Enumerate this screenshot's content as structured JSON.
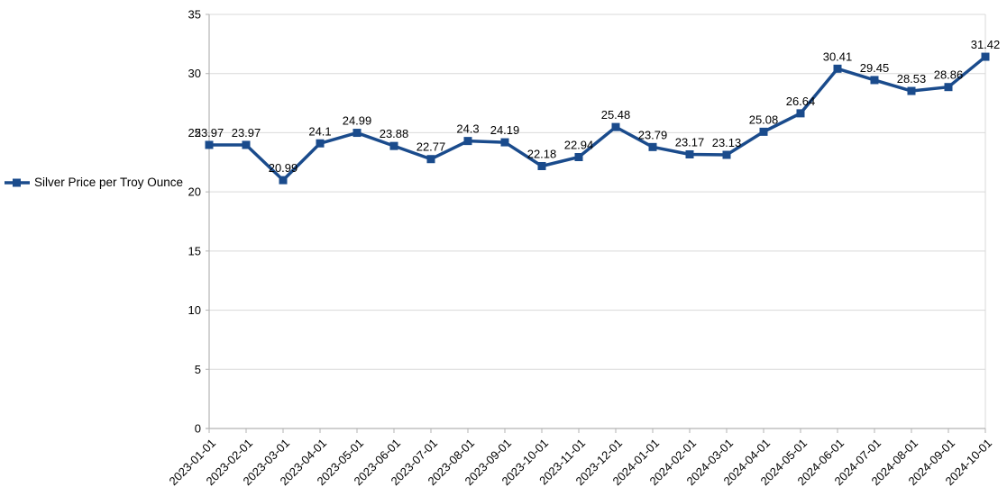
{
  "chart_data": {
    "type": "line",
    "title": "",
    "xlabel": "",
    "ylabel": "",
    "categories": [
      "2023-01-01",
      "2023-02-01",
      "2023-03-01",
      "2023-04-01",
      "2023-05-01",
      "2023-06-01",
      "2023-07-01",
      "2023-08-01",
      "2023-09-01",
      "2023-10-01",
      "2023-11-01",
      "2023-12-01",
      "2024-01-01",
      "2024-02-01",
      "2024-03-01",
      "2024-04-01",
      "2024-05-01",
      "2024-06-01",
      "2024-07-01",
      "2024-08-01",
      "2024-09-01",
      "2024-10-01"
    ],
    "series": [
      {
        "name": "Silver Price per Troy Ounce",
        "values": [
          23.97,
          23.97,
          20.99,
          24.1,
          24.99,
          23.88,
          22.77,
          24.3,
          24.19,
          22.18,
          22.94,
          25.48,
          23.79,
          23.17,
          23.13,
          25.08,
          26.64,
          30.41,
          29.45,
          28.53,
          28.86,
          31.42
        ],
        "labels": [
          "23.97",
          "23.97",
          "20.99",
          "24.1",
          "24.99",
          "23.88",
          "22.77",
          "24.3",
          "24.19",
          "22.18",
          "22.94",
          "25.48",
          "23.79",
          "23.17",
          "23.13",
          "25.08",
          "26.64",
          "30.41",
          "29.45",
          "28.53",
          "28.86",
          "31.42"
        ]
      }
    ],
    "ylim": [
      0,
      35
    ],
    "yticks": [
      "0",
      "5",
      "10",
      "15",
      "20",
      "25",
      "30",
      "35"
    ],
    "grid": "horizontal",
    "legend_position": "left",
    "marker": "square",
    "data_labels": "above",
    "colors": {
      "series": "#1A4B8C",
      "gridline": "#D9D9D9",
      "axis": "#B3B3B3",
      "text": "#000000"
    }
  }
}
